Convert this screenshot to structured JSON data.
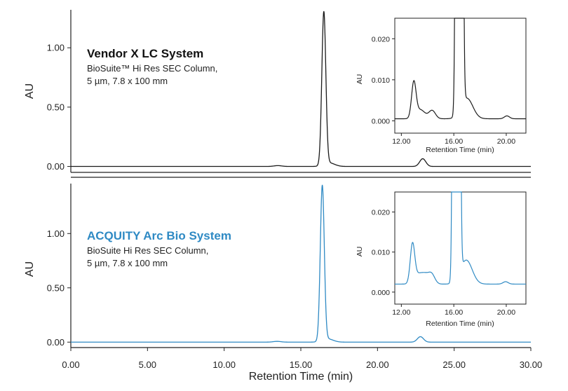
{
  "chart_data": [
    {
      "type": "line",
      "panel": "top",
      "title": "Vendor X LC System",
      "subtitle_lines": [
        "BioSuite™ Hi Res SEC Column,",
        "5 µm, 7.8 x 100 mm"
      ],
      "title_color": "#111111",
      "line_color": "#1a1a1a",
      "ylabel": "AU",
      "xlim": [
        0,
        30
      ],
      "ylim": [
        -0.05,
        1.32
      ],
      "yticks": [
        0.0,
        0.5,
        1.0
      ],
      "ytick_labels": [
        "0.00",
        "0.50",
        "1.00"
      ],
      "baseline": 0.0,
      "peaks": [
        {
          "rt": 13.5,
          "height": 0.007,
          "width": 0.25
        },
        {
          "rt": 16.5,
          "height": 1.29,
          "width": 0.13
        },
        {
          "rt": 16.85,
          "height": 0.03,
          "width": 0.35
        },
        {
          "rt": 22.95,
          "height": 0.065,
          "width": 0.2
        }
      ],
      "inset": {
        "xlabel": "Retention Time (min)",
        "ylabel": "AU",
        "xlim": [
          11.5,
          21.5
        ],
        "ylim": [
          -0.003,
          0.025
        ],
        "xticks": [
          12,
          16,
          20
        ],
        "xtick_labels": [
          "12.00",
          "16.00",
          "20.00"
        ],
        "yticks": [
          0.0,
          0.01,
          0.02
        ],
        "ytick_labels": [
          "0.000",
          "0.010",
          "0.020"
        ],
        "baseline": 0.0005,
        "peaks": [
          {
            "rt": 12.95,
            "height": 0.0085,
            "width": 0.17
          },
          {
            "rt": 13.45,
            "height": 0.0022,
            "width": 0.35
          },
          {
            "rt": 14.35,
            "height": 0.002,
            "width": 0.25
          },
          {
            "rt": 16.42,
            "height": 1.29,
            "width": 0.13
          },
          {
            "rt": 17.0,
            "height": 0.005,
            "width": 0.45
          },
          {
            "rt": 20.05,
            "height": 0.0007,
            "width": 0.2
          }
        ]
      }
    },
    {
      "type": "line",
      "panel": "bottom",
      "title": "ACQUITY Arc Bio System",
      "subtitle_lines": [
        "BioSuite Hi Res SEC Column,",
        "5 µm, 7.8 x 100 mm"
      ],
      "title_color": "#2f8ac4",
      "line_color": "#2f8ac4",
      "xlabel": "Retention Time (min)",
      "ylabel": "AU",
      "xlim": [
        0,
        30
      ],
      "ylim": [
        -0.05,
        1.46
      ],
      "xticks": [
        0,
        5,
        10,
        15,
        20,
        25,
        30
      ],
      "xtick_labels": [
        "0.00",
        "5.00",
        "10.00",
        "15.00",
        "20.00",
        "25.00",
        "30.00"
      ],
      "yticks": [
        0.0,
        0.5,
        1.0
      ],
      "ytick_labels": [
        "0.00",
        "0.50",
        "1.00"
      ],
      "baseline": 0.0,
      "peaks": [
        {
          "rt": 13.45,
          "height": 0.007,
          "width": 0.25
        },
        {
          "rt": 16.4,
          "height": 1.43,
          "width": 0.13
        },
        {
          "rt": 16.75,
          "height": 0.03,
          "width": 0.35
        },
        {
          "rt": 22.8,
          "height": 0.05,
          "width": 0.2
        }
      ],
      "inset": {
        "xlabel": "Retention Time (min)",
        "ylabel": "AU",
        "xlim": [
          11.5,
          21.5
        ],
        "ylim": [
          -0.003,
          0.025
        ],
        "xticks": [
          12,
          16,
          20
        ],
        "xtick_labels": [
          "12.00",
          "16.00",
          "20.00"
        ],
        "yticks": [
          0.0,
          0.01,
          0.02
        ],
        "ytick_labels": [
          "0.000",
          "0.010",
          "0.020"
        ],
        "baseline": 0.002,
        "peaks": [
          {
            "rt": 12.85,
            "height": 0.0095,
            "width": 0.17
          },
          {
            "rt": 13.35,
            "height": 0.0025,
            "width": 0.35
          },
          {
            "rt": 13.85,
            "height": 0.0015,
            "width": 0.25
          },
          {
            "rt": 14.3,
            "height": 0.0025,
            "width": 0.25
          },
          {
            "rt": 16.2,
            "height": 1.43,
            "width": 0.13
          },
          {
            "rt": 16.95,
            "height": 0.006,
            "width": 0.45
          },
          {
            "rt": 19.95,
            "height": 0.0006,
            "width": 0.2
          }
        ]
      }
    }
  ]
}
